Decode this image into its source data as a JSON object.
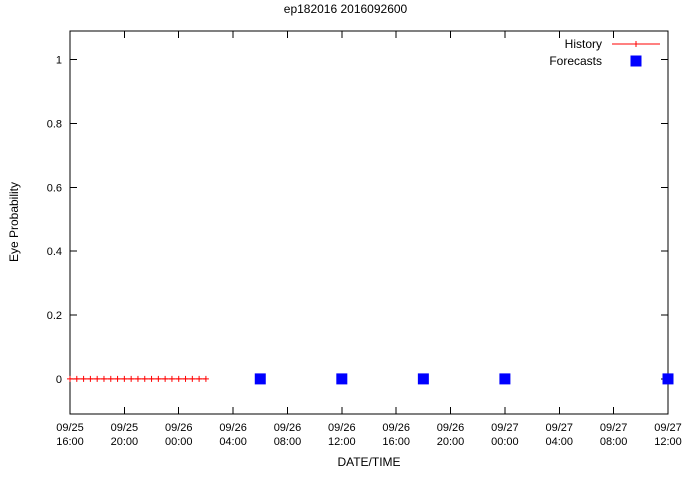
{
  "chart_data": {
    "type": "scatter",
    "title": "ep182016 2016092600",
    "xlabel": "DATE/TIME",
    "ylabel": "Eye Probability",
    "xlim_hours": [
      0,
      44
    ],
    "ylim": [
      -0.11,
      1.09
    ],
    "yticks": [
      0,
      0.2,
      0.4,
      0.6,
      0.8,
      1
    ],
    "ytick_labels": [
      "0",
      "0.2",
      "0.4",
      "0.6",
      "0.8",
      "1"
    ],
    "xticks": [
      {
        "hour": 0,
        "label_line1": "09/25",
        "label_line2": "16:00"
      },
      {
        "hour": 4,
        "label_line1": "09/25",
        "label_line2": "20:00"
      },
      {
        "hour": 8,
        "label_line1": "09/26",
        "label_line2": "00:00"
      },
      {
        "hour": 12,
        "label_line1": "09/26",
        "label_line2": "04:00"
      },
      {
        "hour": 16,
        "label_line1": "09/26",
        "label_line2": "08:00"
      },
      {
        "hour": 20,
        "label_line1": "09/26",
        "label_line2": "12:00"
      },
      {
        "hour": 24,
        "label_line1": "09/26",
        "label_line2": "16:00"
      },
      {
        "hour": 28,
        "label_line1": "09/26",
        "label_line2": "20:00"
      },
      {
        "hour": 32,
        "label_line1": "09/27",
        "label_line2": "00:00"
      },
      {
        "hour": 36,
        "label_line1": "09/27",
        "label_line2": "04:00"
      },
      {
        "hour": 40,
        "label_line1": "09/27",
        "label_line2": "08:00"
      },
      {
        "hour": 44,
        "label_line1": "09/27",
        "label_line2": "12:00"
      }
    ],
    "legend_position": "top-right",
    "grid": false,
    "series": [
      {
        "name": "History",
        "style": "linespoints",
        "marker": "plus",
        "color": "#ff0000",
        "points": [
          [
            0,
            0
          ],
          [
            0.5,
            0
          ],
          [
            1,
            0
          ],
          [
            1.5,
            0
          ],
          [
            2,
            0
          ],
          [
            2.5,
            0
          ],
          [
            3,
            0
          ],
          [
            3.5,
            0
          ],
          [
            4,
            0
          ],
          [
            4.5,
            0
          ],
          [
            5,
            0
          ],
          [
            5.5,
            0
          ],
          [
            6,
            0
          ],
          [
            6.5,
            0
          ],
          [
            7,
            0
          ],
          [
            7.5,
            0
          ],
          [
            8,
            0
          ],
          [
            8.5,
            0
          ],
          [
            9,
            0
          ],
          [
            9.5,
            0
          ],
          [
            10,
            0
          ]
        ]
      },
      {
        "name": "Forecasts",
        "style": "points",
        "marker": "filled-square",
        "color": "#0000ff",
        "points": [
          [
            14,
            0
          ],
          [
            20,
            0
          ],
          [
            26,
            0
          ],
          [
            32,
            0
          ],
          [
            44,
            0
          ]
        ]
      }
    ]
  }
}
